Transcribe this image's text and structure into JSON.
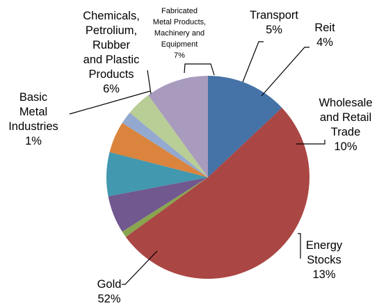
{
  "chart_data": {
    "type": "pie",
    "title": "",
    "legend": "none",
    "start_angle_deg": 90,
    "direction": "clockwise",
    "slices": [
      {
        "label_lines": [
          "Energy",
          "Stocks"
        ],
        "value_text": "13%",
        "value": 13,
        "color": "#4572a7"
      },
      {
        "label_lines": [
          "Gold"
        ],
        "value_text": "52%",
        "value": 52,
        "color": "#aa4643"
      },
      {
        "label_lines": [
          "Basic",
          "Metal",
          "Industries"
        ],
        "value_text": "1%",
        "value": 1,
        "color": "#89a54e"
      },
      {
        "label_lines": [
          "Chemicals,",
          "Petrolium,",
          "Rubber",
          "and Plastic",
          "Products"
        ],
        "value_text": "6%",
        "value": 6,
        "color": "#71588f"
      },
      {
        "label_lines": [
          "Fabricated",
          "Metal Products,",
          "Machinery and",
          "Equipment"
        ],
        "value_text": "7%",
        "value": 7,
        "color": "#4198af"
      },
      {
        "label_lines": [
          "Transport"
        ],
        "value_text": "5%",
        "value": 5,
        "color": "#db843d"
      },
      {
        "label_lines": [],
        "value_text": "",
        "value": 2,
        "color": "#93a9cf"
      },
      {
        "label_lines": [
          "Reit"
        ],
        "value_text": "4%",
        "value": 4,
        "color": "#b9cd96"
      },
      {
        "label_lines": [
          "Wholesale",
          "and Retail",
          "Trade"
        ],
        "value_text": "10%",
        "value": 10,
        "color": "#a99bbd"
      }
    ]
  }
}
